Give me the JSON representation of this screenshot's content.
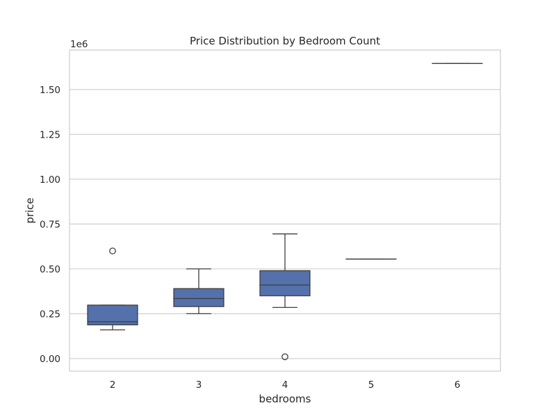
{
  "chart_data": {
    "type": "box",
    "title": "Price Distribution by Bedroom Count",
    "xlabel": "bedrooms",
    "ylabel": "price",
    "y_offset_label": "1e6",
    "y_multiplier": 1000000,
    "ylim": [
      -0.07,
      1.72
    ],
    "yticks": [
      0.0,
      0.25,
      0.5,
      0.75,
      1.0,
      1.25,
      1.5
    ],
    "ytick_labels": [
      "0.00",
      "0.25",
      "0.50",
      "0.75",
      "1.00",
      "1.25",
      "1.50"
    ],
    "grid": "horizontal",
    "box_color": "#5471ab",
    "categories": [
      "2",
      "3",
      "4",
      "5",
      "6"
    ],
    "boxes": [
      {
        "category": "2",
        "whisker_low": 0.16,
        "q1": 0.188,
        "median": 0.205,
        "q3": 0.298,
        "whisker_high": 0.298,
        "outliers": [
          0.6
        ]
      },
      {
        "category": "3",
        "whisker_low": 0.25,
        "q1": 0.29,
        "median": 0.335,
        "q3": 0.39,
        "whisker_high": 0.5,
        "outliers": []
      },
      {
        "category": "4",
        "whisker_low": 0.285,
        "q1": 0.35,
        "median": 0.41,
        "q3": 0.49,
        "whisker_high": 0.695,
        "outliers": [
          0.01
        ]
      },
      {
        "category": "5",
        "whisker_low": 0.555,
        "q1": 0.555,
        "median": 0.555,
        "q3": 0.555,
        "whisker_high": 0.555,
        "outliers": []
      },
      {
        "category": "6",
        "whisker_low": 1.645,
        "q1": 1.645,
        "median": 1.645,
        "q3": 1.645,
        "whisker_high": 1.645,
        "outliers": []
      }
    ]
  }
}
